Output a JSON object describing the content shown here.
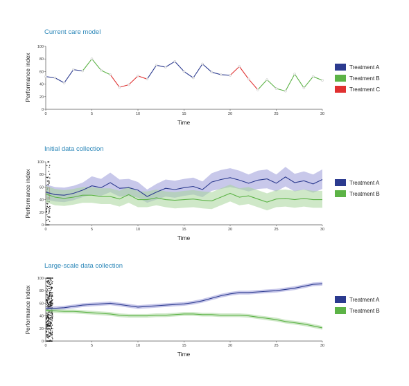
{
  "colors": {
    "treatment_a": "#2b3a8f",
    "treatment_b": "#5cb346",
    "treatment_c": "#e03030",
    "band_a": "#9a9ad8",
    "band_b": "#a8d69a",
    "title": "#2a86b8"
  },
  "chart_data": [
    {
      "type": "line",
      "title": "Current care model",
      "xlabel": "Time",
      "ylabel": "Performance index",
      "xlim": [
        0,
        30
      ],
      "ylim": [
        0,
        100
      ],
      "xticks": [
        0,
        5,
        10,
        15,
        20,
        25,
        30
      ],
      "yticks": [
        0,
        20,
        40,
        60,
        80,
        100
      ],
      "legend_position": "right",
      "legend": [
        "Treatment A",
        "Treatment B",
        "Treatment C"
      ],
      "x": [
        0,
        1,
        2,
        3,
        4,
        5,
        6,
        7,
        8,
        9,
        10,
        11,
        12,
        13,
        14,
        15,
        16,
        17,
        18,
        19,
        20,
        21,
        22,
        23,
        24,
        25,
        26,
        27,
        28,
        29,
        30
      ],
      "y": [
        52,
        50,
        42,
        63,
        61,
        80,
        62,
        55,
        35,
        39,
        53,
        48,
        70,
        67,
        76,
        60,
        50,
        72,
        59,
        55,
        54,
        68,
        48,
        31,
        47,
        33,
        29,
        56,
        34,
        52,
        46
      ],
      "treatment": [
        "A",
        "A",
        "A",
        "A",
        "A",
        "B",
        "B",
        "B",
        "C",
        "C",
        "C",
        "C",
        "A",
        "A",
        "A",
        "A",
        "A",
        "A",
        "A",
        "A",
        "A",
        "C",
        "C",
        "C",
        "B",
        "B",
        "B",
        "B",
        "B",
        "B",
        "B"
      ]
    },
    {
      "type": "line",
      "title": "Initial data collection",
      "xlabel": "Time",
      "ylabel": "Performance index",
      "xlim": [
        0,
        30
      ],
      "ylim": [
        0,
        100
      ],
      "xticks": [
        0,
        5,
        10,
        15,
        20,
        25,
        30
      ],
      "yticks": [
        0,
        20,
        40,
        60,
        80,
        100
      ],
      "legend_position": "right",
      "legend": [
        "Treatment A",
        "Treatment B"
      ],
      "x": [
        0,
        1,
        2,
        3,
        4,
        5,
        6,
        7,
        8,
        9,
        10,
        11,
        12,
        13,
        14,
        15,
        16,
        17,
        18,
        19,
        20,
        21,
        22,
        23,
        24,
        25,
        26,
        27,
        28,
        29,
        30
      ],
      "series": [
        {
          "name": "Treatment A",
          "values": [
            52,
            48,
            47,
            50,
            55,
            62,
            59,
            67,
            58,
            59,
            55,
            45,
            52,
            58,
            56,
            59,
            61,
            56,
            68,
            72,
            75,
            71,
            66,
            71,
            73,
            66,
            76,
            67,
            70,
            65,
            72
          ],
          "lower": [
            40,
            37,
            36,
            39,
            44,
            48,
            46,
            52,
            45,
            46,
            43,
            35,
            40,
            45,
            43,
            46,
            48,
            44,
            54,
            57,
            60,
            57,
            53,
            57,
            58,
            53,
            61,
            53,
            56,
            51,
            57
          ],
          "upper": [
            64,
            60,
            59,
            62,
            67,
            77,
            73,
            83,
            72,
            73,
            68,
            56,
            65,
            72,
            70,
            73,
            75,
            69,
            82,
            87,
            90,
            86,
            80,
            86,
            88,
            80,
            92,
            81,
            85,
            80,
            88
          ]
        },
        {
          "name": "Treatment B",
          "values": [
            49,
            44,
            42,
            44,
            47,
            47,
            45,
            45,
            41,
            48,
            40,
            40,
            43,
            40,
            39,
            40,
            41,
            39,
            38,
            44,
            50,
            44,
            46,
            41,
            36,
            41,
            42,
            40,
            42,
            40,
            40
          ],
          "lower": [
            36,
            31,
            30,
            32,
            35,
            35,
            33,
            33,
            29,
            35,
            28,
            28,
            31,
            28,
            26,
            27,
            28,
            26,
            25,
            31,
            37,
            31,
            33,
            28,
            23,
            28,
            29,
            27,
            29,
            27,
            27
          ],
          "upper": [
            62,
            57,
            55,
            57,
            60,
            60,
            58,
            58,
            54,
            61,
            53,
            53,
            56,
            53,
            52,
            54,
            55,
            53,
            52,
            58,
            64,
            58,
            60,
            55,
            50,
            55,
            56,
            54,
            56,
            54,
            54
          ]
        }
      ]
    },
    {
      "type": "line",
      "title": "Large-scale data collection",
      "xlabel": "Time",
      "ylabel": "Performance index",
      "xlim": [
        0,
        30
      ],
      "ylim": [
        0,
        100
      ],
      "xticks": [
        0,
        5,
        10,
        15,
        20,
        25,
        30
      ],
      "yticks": [
        0,
        20,
        40,
        60,
        80,
        100
      ],
      "legend_position": "right",
      "legend": [
        "Treatment A",
        "Treatment B"
      ],
      "x": [
        0,
        1,
        2,
        3,
        4,
        5,
        6,
        7,
        8,
        9,
        10,
        11,
        12,
        13,
        14,
        15,
        16,
        17,
        18,
        19,
        20,
        21,
        22,
        23,
        24,
        25,
        26,
        27,
        28,
        29,
        30
      ],
      "series": [
        {
          "name": "Treatment A",
          "values": [
            51,
            52,
            53,
            55,
            57,
            58,
            59,
            60,
            58,
            56,
            54,
            55,
            56,
            57,
            58,
            59,
            61,
            64,
            68,
            72,
            75,
            77,
            77,
            78,
            79,
            80,
            82,
            84,
            87,
            90,
            91
          ],
          "lower": [
            48,
            49,
            50,
            52,
            54,
            55,
            56,
            57,
            55,
            53,
            51,
            52,
            53,
            54,
            55,
            56,
            58,
            61,
            65,
            69,
            72,
            74,
            74,
            75,
            76,
            77,
            79,
            81,
            84,
            87,
            88
          ],
          "upper": [
            54,
            55,
            56,
            58,
            60,
            61,
            62,
            63,
            61,
            59,
            57,
            58,
            59,
            60,
            61,
            62,
            64,
            67,
            71,
            75,
            78,
            80,
            80,
            81,
            82,
            83,
            85,
            87,
            90,
            93,
            94
          ]
        },
        {
          "name": "Treatment B",
          "values": [
            49,
            48,
            47,
            47,
            46,
            45,
            44,
            43,
            41,
            40,
            40,
            40,
            41,
            41,
            42,
            43,
            43,
            42,
            42,
            41,
            41,
            41,
            40,
            38,
            36,
            34,
            31,
            29,
            27,
            24,
            21
          ],
          "lower": [
            46,
            45,
            44,
            44,
            43,
            42,
            41,
            40,
            38,
            37,
            37,
            37,
            38,
            38,
            39,
            40,
            40,
            39,
            39,
            38,
            38,
            38,
            37,
            35,
            33,
            31,
            28,
            26,
            24,
            21,
            18
          ],
          "upper": [
            52,
            51,
            50,
            50,
            49,
            48,
            47,
            46,
            44,
            43,
            43,
            43,
            44,
            44,
            45,
            46,
            46,
            45,
            45,
            44,
            44,
            44,
            43,
            41,
            39,
            37,
            34,
            32,
            30,
            27,
            24
          ]
        }
      ]
    }
  ]
}
